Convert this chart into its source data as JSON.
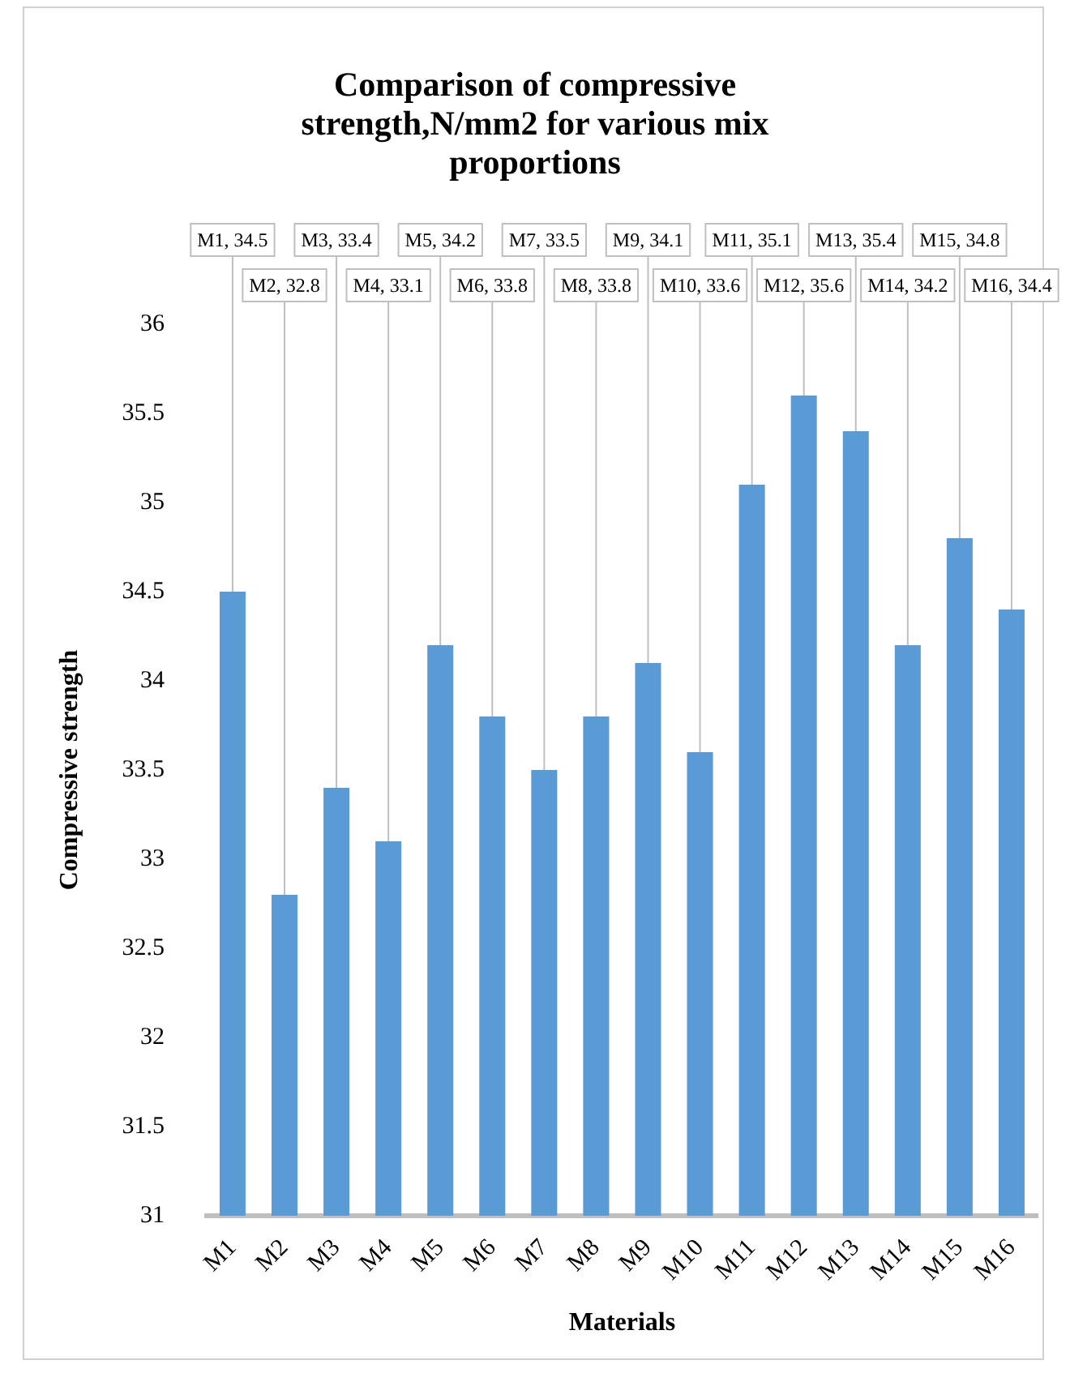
{
  "chart_data": {
    "type": "bar",
    "title": "Comparison of compressive strength,N/mm2 for various mix proportions",
    "xlabel": "Materials",
    "ylabel": "Compressive strength",
    "categories": [
      "M1",
      "M2",
      "M3",
      "M4",
      "M5",
      "M6",
      "M7",
      "M8",
      "M9",
      "M10",
      "M11",
      "M12",
      "M13",
      "M14",
      "M15",
      "M16"
    ],
    "values": [
      34.5,
      32.8,
      33.4,
      33.1,
      34.2,
      33.8,
      33.5,
      33.8,
      34.1,
      33.6,
      35.1,
      35.6,
      35.4,
      34.2,
      34.8,
      34.4
    ],
    "value_labels": [
      "M1, 34.5",
      "M2, 32.8",
      "M3, 33.4",
      "M4, 33.1",
      "M5, 34.2",
      "M6, 33.8",
      "M7, 33.5",
      "M8, 33.8",
      "M9, 34.1",
      "M10, 33.6",
      "M11, 35.1",
      "M12, 35.6",
      "M13, 35.4",
      "M14, 34.2",
      "M15, 34.8",
      "M16, 34.4"
    ],
    "color": "#5b9bd5",
    "ylim": [
      31,
      36
    ],
    "yticks": [
      31,
      31.5,
      32,
      32.5,
      33,
      33.5,
      34,
      34.5,
      35,
      35.5,
      36
    ],
    "grid": false,
    "legend": false
  }
}
